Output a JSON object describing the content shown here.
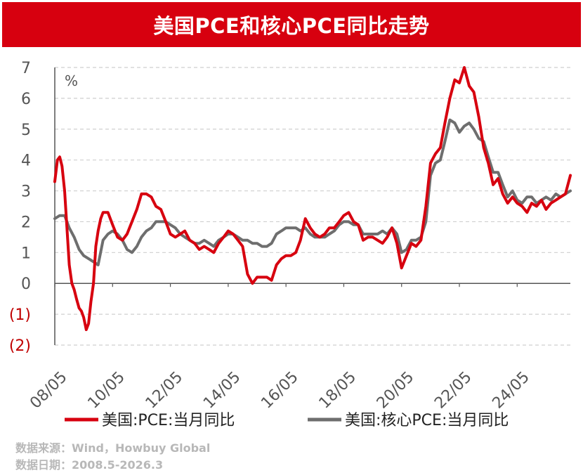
{
  "page": {
    "title": "美国PCE和核心PCE同比走势",
    "source": "数据来源：Wind，Howbuy Global",
    "date_range": "数据日期：2008.5-2026.3"
  },
  "colors": {
    "title_bg": "#d7000f",
    "pce": "#d7000f",
    "core": "#6e6e6e",
    "negative_tick": "#c00000"
  },
  "chart_data": {
    "type": "line",
    "title": "美国PCE和核心PCE同比走势",
    "ylabel": "%",
    "ylim": [
      -2,
      7
    ],
    "yticks": [
      7,
      6,
      5,
      4,
      3,
      2,
      1,
      0,
      -1,
      -2
    ],
    "ytick_labels": [
      "7",
      "6",
      "5",
      "4",
      "3",
      "2",
      "1",
      "0",
      "(1)",
      "(2)"
    ],
    "xlim": [
      2008.33,
      2026.17
    ],
    "xticks": [
      2008.33,
      2010.33,
      2012.33,
      2014.33,
      2016.33,
      2018.33,
      2020.33,
      2022.33,
      2024.33
    ],
    "xtick_labels": [
      "08/05",
      "10/05",
      "12/05",
      "14/05",
      "16/05",
      "18/05",
      "20/05",
      "22/05",
      "24/05"
    ],
    "grid": "horizontal dashed",
    "legend": "bottom",
    "series": [
      {
        "name": "美国:PCE:当月同比",
        "color": "#d7000f",
        "x": [
          2008.33,
          2008.42,
          2008.5,
          2008.58,
          2008.67,
          2008.75,
          2008.83,
          2008.92,
          2009.0,
          2009.08,
          2009.17,
          2009.25,
          2009.33,
          2009.42,
          2009.5,
          2009.58,
          2009.67,
          2009.75,
          2009.83,
          2009.92,
          2010.0,
          2010.17,
          2010.33,
          2010.5,
          2010.67,
          2010.83,
          2011.0,
          2011.17,
          2011.33,
          2011.5,
          2011.67,
          2011.83,
          2012.0,
          2012.17,
          2012.33,
          2012.5,
          2012.67,
          2012.83,
          2013.0,
          2013.17,
          2013.33,
          2013.5,
          2013.67,
          2013.83,
          2014.0,
          2014.17,
          2014.33,
          2014.5,
          2014.67,
          2014.83,
          2015.0,
          2015.17,
          2015.33,
          2015.5,
          2015.67,
          2015.83,
          2016.0,
          2016.17,
          2016.33,
          2016.5,
          2016.67,
          2016.83,
          2017.0,
          2017.17,
          2017.33,
          2017.5,
          2017.67,
          2017.83,
          2018.0,
          2018.17,
          2018.33,
          2018.5,
          2018.67,
          2018.83,
          2019.0,
          2019.17,
          2019.33,
          2019.5,
          2019.67,
          2019.83,
          2020.0,
          2020.17,
          2020.33,
          2020.5,
          2020.67,
          2020.83,
          2021.0,
          2021.17,
          2021.33,
          2021.5,
          2021.67,
          2021.83,
          2022.0,
          2022.17,
          2022.33,
          2022.5,
          2022.67,
          2022.83,
          2023.0,
          2023.17,
          2023.33,
          2023.5,
          2023.67,
          2023.83,
          2024.0,
          2024.17,
          2024.33,
          2024.5,
          2024.67,
          2024.83,
          2025.0,
          2025.17,
          2025.33,
          2025.5,
          2025.67,
          2025.83,
          2026.0,
          2026.17
        ],
        "values": [
          3.3,
          4.0,
          4.1,
          3.8,
          3.0,
          1.8,
          0.6,
          0.0,
          -0.2,
          -0.5,
          -0.8,
          -0.9,
          -1.1,
          -1.5,
          -1.3,
          -0.6,
          0.0,
          1.2,
          1.7,
          2.1,
          2.3,
          2.3,
          1.9,
          1.5,
          1.4,
          1.6,
          2.0,
          2.4,
          2.9,
          2.9,
          2.8,
          2.5,
          2.4,
          2.0,
          1.6,
          1.5,
          1.6,
          1.7,
          1.4,
          1.3,
          1.1,
          1.2,
          1.1,
          1.0,
          1.3,
          1.5,
          1.7,
          1.6,
          1.4,
          1.2,
          0.3,
          0.0,
          0.2,
          0.2,
          0.2,
          0.1,
          0.6,
          0.8,
          0.9,
          0.9,
          1.0,
          1.4,
          2.1,
          1.8,
          1.6,
          1.5,
          1.6,
          1.8,
          1.8,
          2.0,
          2.2,
          2.3,
          2.0,
          1.9,
          1.4,
          1.5,
          1.5,
          1.4,
          1.3,
          1.5,
          1.8,
          1.3,
          0.5,
          0.9,
          1.3,
          1.2,
          1.4,
          2.5,
          3.9,
          4.2,
          4.4,
          5.2,
          6.0,
          6.6,
          6.5,
          7.0,
          6.4,
          6.2,
          5.4,
          4.4,
          3.9,
          3.2,
          3.4,
          2.9,
          2.6,
          2.8,
          2.6,
          2.5,
          2.3,
          2.6,
          2.5,
          2.7,
          2.4,
          2.6,
          2.7,
          2.8,
          2.9,
          3.5
        ]
      },
      {
        "name": "美国:核心PCE:当月同比",
        "color": "#6e6e6e",
        "x": [
          2008.33,
          2008.5,
          2008.67,
          2008.83,
          2009.0,
          2009.17,
          2009.33,
          2009.5,
          2009.67,
          2009.83,
          2010.0,
          2010.17,
          2010.33,
          2010.5,
          2010.67,
          2010.83,
          2011.0,
          2011.17,
          2011.33,
          2011.5,
          2011.67,
          2011.83,
          2012.0,
          2012.17,
          2012.33,
          2012.5,
          2012.67,
          2012.83,
          2013.0,
          2013.17,
          2013.33,
          2013.5,
          2013.67,
          2013.83,
          2014.0,
          2014.17,
          2014.33,
          2014.5,
          2014.67,
          2014.83,
          2015.0,
          2015.17,
          2015.33,
          2015.5,
          2015.67,
          2015.83,
          2016.0,
          2016.17,
          2016.33,
          2016.5,
          2016.67,
          2016.83,
          2017.0,
          2017.17,
          2017.33,
          2017.5,
          2017.67,
          2017.83,
          2018.0,
          2018.17,
          2018.33,
          2018.5,
          2018.67,
          2018.83,
          2019.0,
          2019.17,
          2019.33,
          2019.5,
          2019.67,
          2019.83,
          2020.0,
          2020.17,
          2020.33,
          2020.5,
          2020.67,
          2020.83,
          2021.0,
          2021.17,
          2021.33,
          2021.5,
          2021.67,
          2021.83,
          2022.0,
          2022.17,
          2022.33,
          2022.5,
          2022.67,
          2022.83,
          2023.0,
          2023.17,
          2023.33,
          2023.5,
          2023.67,
          2023.83,
          2024.0,
          2024.17,
          2024.33,
          2024.5,
          2024.67,
          2024.83,
          2025.0,
          2025.17,
          2025.33,
          2025.5,
          2025.67,
          2025.83,
          2026.0,
          2026.17
        ],
        "values": [
          2.1,
          2.2,
          2.2,
          1.8,
          1.5,
          1.1,
          0.9,
          0.8,
          0.7,
          0.6,
          1.4,
          1.6,
          1.7,
          1.6,
          1.4,
          1.1,
          1.0,
          1.2,
          1.5,
          1.7,
          1.8,
          2.0,
          2.0,
          2.0,
          1.9,
          1.8,
          1.6,
          1.5,
          1.4,
          1.3,
          1.3,
          1.4,
          1.3,
          1.2,
          1.4,
          1.5,
          1.6,
          1.6,
          1.5,
          1.4,
          1.4,
          1.3,
          1.3,
          1.2,
          1.2,
          1.3,
          1.6,
          1.7,
          1.8,
          1.8,
          1.8,
          1.7,
          1.8,
          1.6,
          1.5,
          1.5,
          1.5,
          1.6,
          1.7,
          1.9,
          2.0,
          2.0,
          1.9,
          1.9,
          1.6,
          1.6,
          1.6,
          1.6,
          1.7,
          1.6,
          1.8,
          1.6,
          1.0,
          1.1,
          1.4,
          1.4,
          1.5,
          2.0,
          3.5,
          3.9,
          4.0,
          4.6,
          5.3,
          5.2,
          4.9,
          5.1,
          5.2,
          5.0,
          4.7,
          4.6,
          4.1,
          3.6,
          3.6,
          3.2,
          2.8,
          3.0,
          2.7,
          2.6,
          2.8,
          2.8,
          2.6,
          2.7,
          2.8,
          2.7,
          2.9,
          2.8,
          2.9,
          3.0
        ]
      }
    ]
  }
}
